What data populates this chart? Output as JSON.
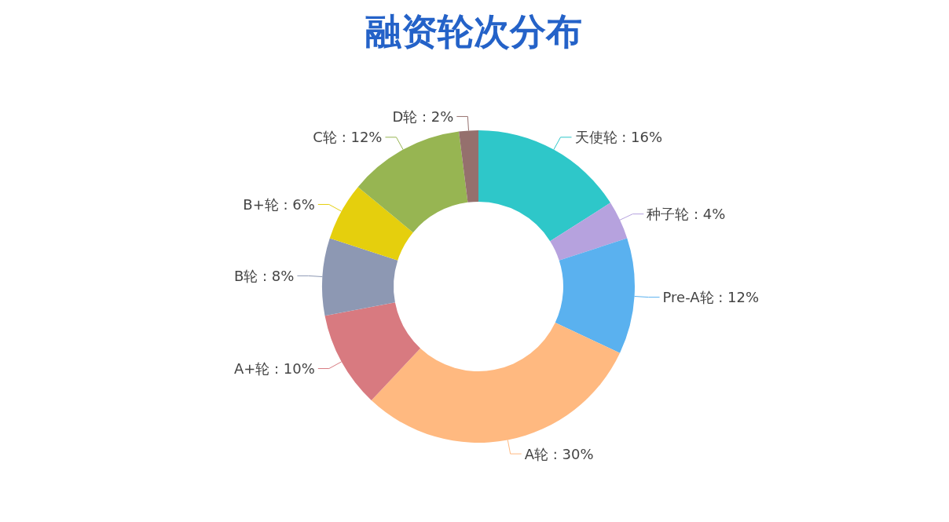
{
  "chart_data": {
    "type": "donut",
    "title": "融资轮次分布",
    "categories": [
      "天使轮",
      "种子轮",
      "Pre-A轮",
      "A轮",
      "A+轮",
      "B轮",
      "B+轮",
      "C轮",
      "D轮"
    ],
    "values": [
      16,
      4,
      12,
      30,
      10,
      8,
      6,
      12,
      2
    ],
    "value_labels": [
      "16%",
      "4%",
      "12%",
      "30%",
      "10%",
      "8%",
      "6%",
      "12%",
      "2%"
    ],
    "colors": [
      "#2ec7c9",
      "#b6a2de",
      "#5ab1ef",
      "#ffb980",
      "#d87a80",
      "#8d98b3",
      "#e5cf0d",
      "#97b552",
      "#95706d"
    ],
    "legend": false
  }
}
